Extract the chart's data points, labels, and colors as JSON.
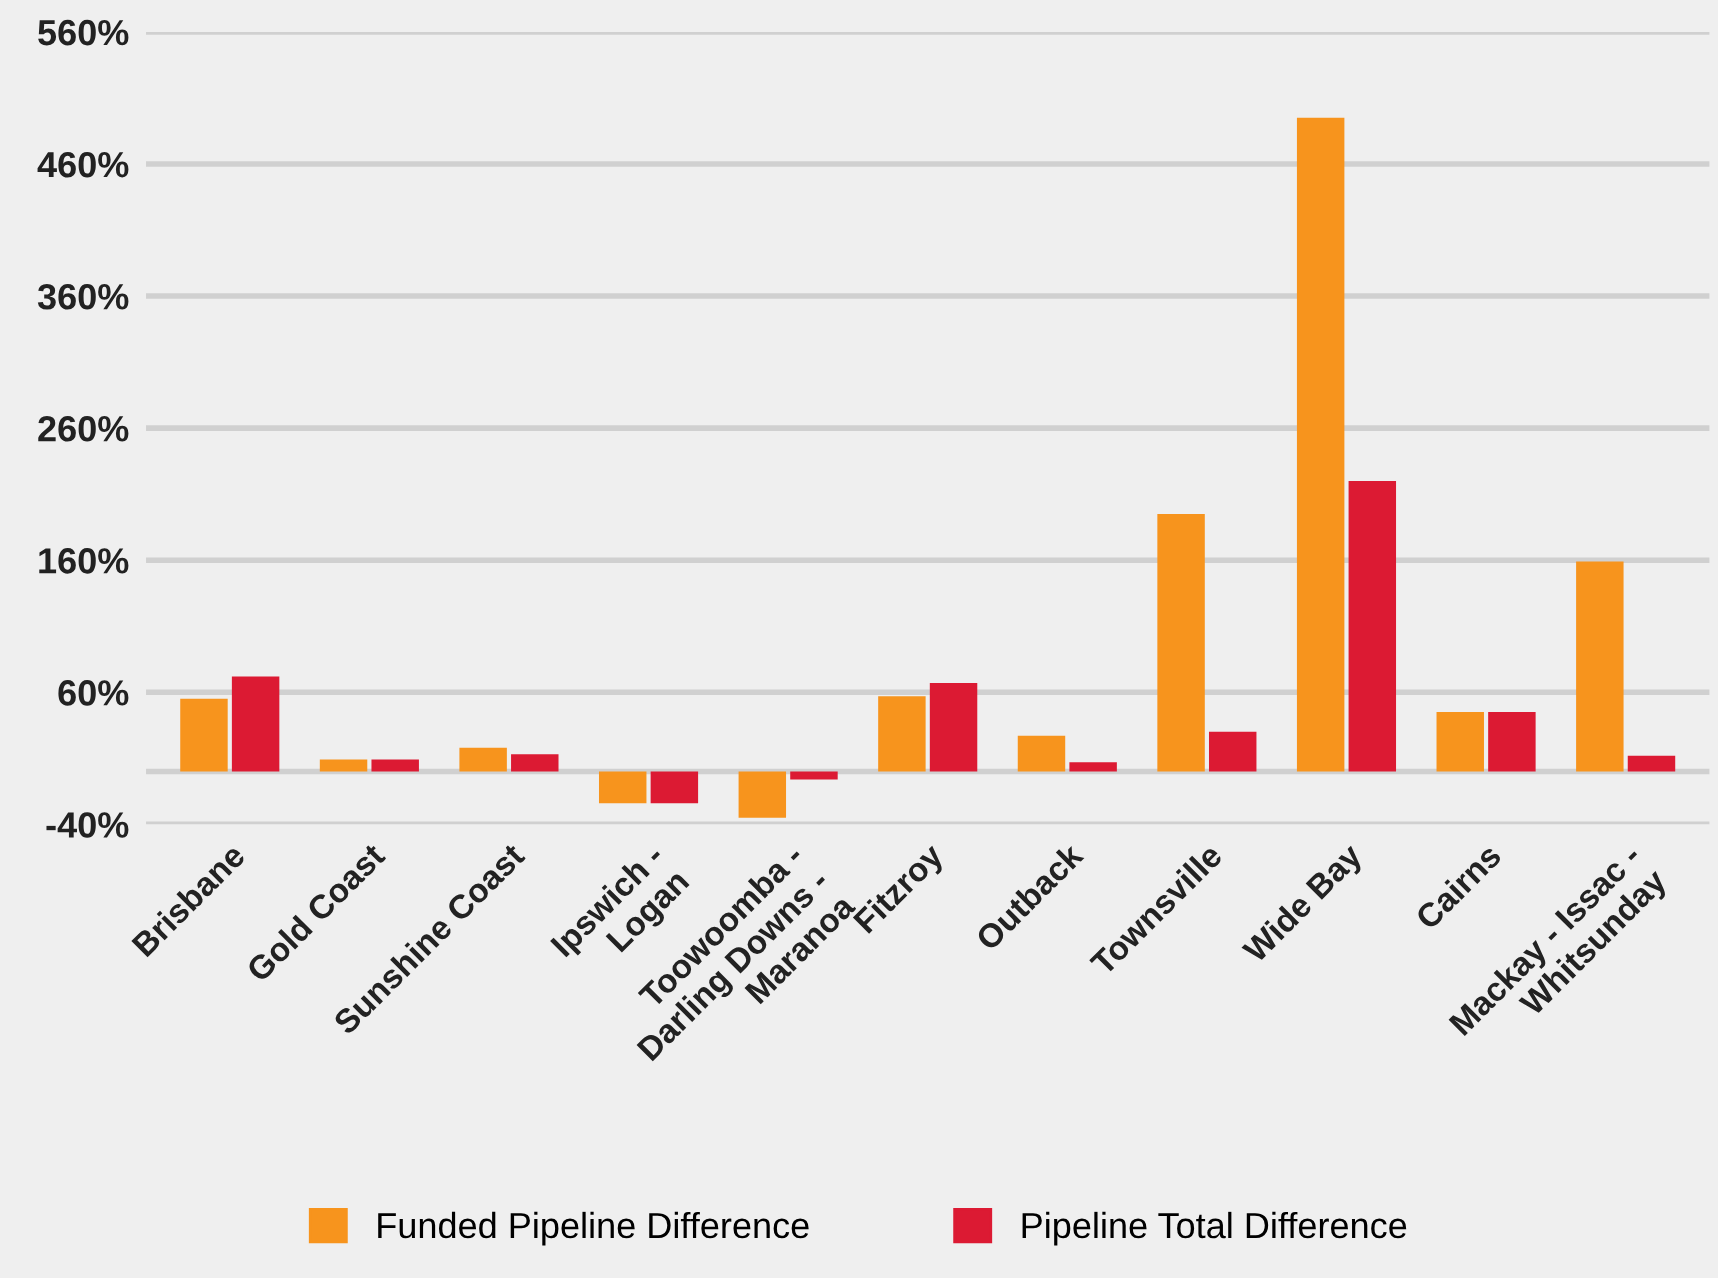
{
  "chart_data": {
    "type": "bar",
    "categories": [
      "Brisbane",
      "Gold Coast",
      "Sunshine Coast",
      "Ipswich -\nLogan",
      "Toowoomba -\nDarling Downs -\nMaranoa",
      "Fitzroy",
      "Outback",
      "Townsville",
      "Wide Bay",
      "Cairns",
      "Mackay - Issac -\nWhitsunday"
    ],
    "series": [
      {
        "name": "Funded Pipeline Difference",
        "color": "#f7941d",
        "values": [
          55,
          9,
          18,
          -24,
          -35,
          57,
          27,
          195,
          495,
          45,
          159
        ]
      },
      {
        "name": "Pipeline Total Difference",
        "color": "#dc1a33",
        "values": [
          72,
          9,
          13,
          -24,
          -6,
          67,
          7,
          30,
          220,
          45,
          12
        ]
      }
    ],
    "ylim": [
      -40,
      560
    ],
    "yticks": [
      {
        "value": -40,
        "label": "-40%"
      },
      {
        "value": 60,
        "label": "60%"
      },
      {
        "value": 160,
        "label": "160%"
      },
      {
        "value": 260,
        "label": "260%"
      },
      {
        "value": 360,
        "label": "360%"
      },
      {
        "value": 460,
        "label": "460%"
      },
      {
        "value": 560,
        "label": "560%"
      }
    ],
    "grid": "y",
    "legend": "bottom"
  }
}
